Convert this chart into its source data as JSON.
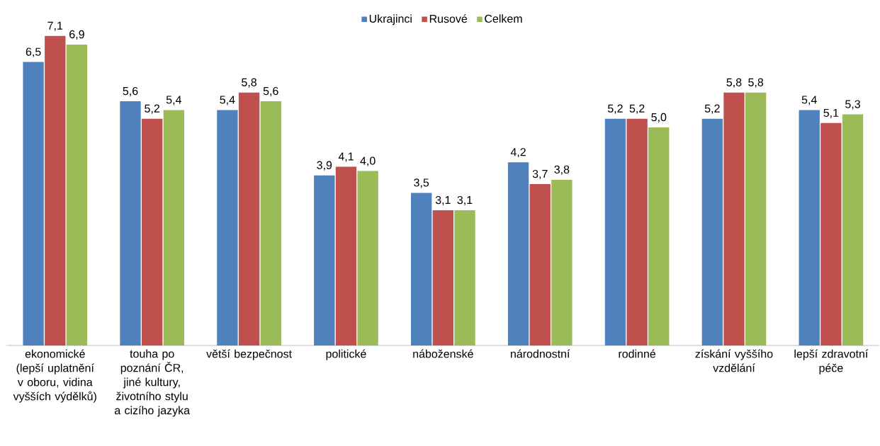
{
  "chart_data": {
    "type": "bar",
    "categories": [
      "ekonomické (lepší uplatnění v oboru, vidina vyšších výdělků)",
      "touha po poznání ČR, jiné kultury, životního stylu a cizího jazyka",
      "větší bezpečnost",
      "politické",
      "náboženské",
      "národnostní",
      "rodinné",
      "získání vyššího vzdělání",
      "lepší zdravotní péče"
    ],
    "series": [
      {
        "name": "Ukrajinci",
        "color": "#4f81bd",
        "values": [
          6.5,
          5.6,
          5.4,
          3.9,
          3.5,
          4.2,
          5.2,
          5.2,
          5.4
        ],
        "value_labels": [
          "6,5",
          "5,6",
          "5,4",
          "3,9",
          "3,5",
          "4,2",
          "5,2",
          "5,2",
          "5,4"
        ]
      },
      {
        "name": "Rusové",
        "color": "#c0504d",
        "values": [
          7.1,
          5.2,
          5.8,
          4.1,
          3.1,
          3.7,
          5.2,
          5.8,
          5.1
        ],
        "value_labels": [
          "7,1",
          "5,2",
          "5,8",
          "4,1",
          "3,1",
          "3,7",
          "5,2",
          "5,8",
          "5,1"
        ]
      },
      {
        "name": "Celkem",
        "color": "#9bbb59",
        "values": [
          6.9,
          5.4,
          5.6,
          4.0,
          3.1,
          3.8,
          5.0,
          5.8,
          5.3
        ],
        "value_labels": [
          "6,9",
          "5,4",
          "5,6",
          "4,0",
          "3,1",
          "3,8",
          "5,0",
          "5,8",
          "5,3"
        ]
      }
    ],
    "legend": "top"
  }
}
